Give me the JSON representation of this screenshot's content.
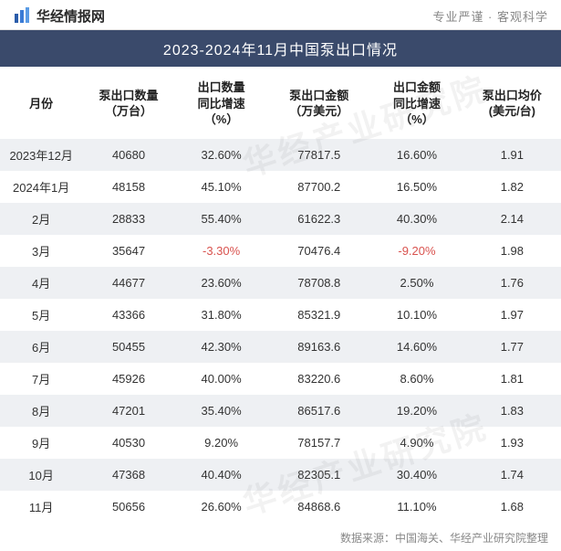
{
  "header": {
    "brand": "华经情报网",
    "tagline": "专业严谨 · 客观科学",
    "logo_colors": {
      "bar1": "#2a5caa",
      "bar2": "#3a7bd5",
      "bar3": "#5a9be5"
    }
  },
  "title": "2023-2024年11月中国泵出口情况",
  "title_bar_bg": "#3a4a6b",
  "title_bar_fg": "#ffffff",
  "watermark_text": "华经产业研究院",
  "table": {
    "type": "table",
    "row_bg_odd": "#eef0f3",
    "row_bg_even": "#ffffff",
    "negative_color": "#d9534f",
    "header_fontsize": 13,
    "cell_fontsize": 13,
    "columns": [
      {
        "key": "month",
        "label": "月份",
        "width": 80
      },
      {
        "key": "qty",
        "label": "泵出口数量\n（万台）",
        "width": 90
      },
      {
        "key": "qty_yoy",
        "label": "出口数量\n同比增速\n（%）",
        "width": 90
      },
      {
        "key": "value",
        "label": "泵出口金额\n（万美元）",
        "width": 100
      },
      {
        "key": "value_yoy",
        "label": "出口金额\n同比增速\n（%）",
        "width": 90
      },
      {
        "key": "unit_price",
        "label": "泵出口均价\n(美元/台)",
        "width": 95
      }
    ],
    "rows": [
      {
        "month": "2023年12月",
        "qty": "40680",
        "qty_yoy": "32.60%",
        "qty_yoy_neg": false,
        "value": "77817.5",
        "value_yoy": "16.60%",
        "value_yoy_neg": false,
        "unit_price": "1.91"
      },
      {
        "month": "2024年1月",
        "qty": "48158",
        "qty_yoy": "45.10%",
        "qty_yoy_neg": false,
        "value": "87700.2",
        "value_yoy": "16.50%",
        "value_yoy_neg": false,
        "unit_price": "1.82"
      },
      {
        "month": "2月",
        "qty": "28833",
        "qty_yoy": "55.40%",
        "qty_yoy_neg": false,
        "value": "61622.3",
        "value_yoy": "40.30%",
        "value_yoy_neg": false,
        "unit_price": "2.14"
      },
      {
        "month": "3月",
        "qty": "35647",
        "qty_yoy": "-3.30%",
        "qty_yoy_neg": true,
        "value": "70476.4",
        "value_yoy": "-9.20%",
        "value_yoy_neg": true,
        "unit_price": "1.98"
      },
      {
        "month": "4月",
        "qty": "44677",
        "qty_yoy": "23.60%",
        "qty_yoy_neg": false,
        "value": "78708.8",
        "value_yoy": "2.50%",
        "value_yoy_neg": false,
        "unit_price": "1.76"
      },
      {
        "month": "5月",
        "qty": "43366",
        "qty_yoy": "31.80%",
        "qty_yoy_neg": false,
        "value": "85321.9",
        "value_yoy": "10.10%",
        "value_yoy_neg": false,
        "unit_price": "1.97"
      },
      {
        "month": "6月",
        "qty": "50455",
        "qty_yoy": "42.30%",
        "qty_yoy_neg": false,
        "value": "89163.6",
        "value_yoy": "14.60%",
        "value_yoy_neg": false,
        "unit_price": "1.77"
      },
      {
        "month": "7月",
        "qty": "45926",
        "qty_yoy": "40.00%",
        "qty_yoy_neg": false,
        "value": "83220.6",
        "value_yoy": "8.60%",
        "value_yoy_neg": false,
        "unit_price": "1.81"
      },
      {
        "month": "8月",
        "qty": "47201",
        "qty_yoy": "35.40%",
        "qty_yoy_neg": false,
        "value": "86517.6",
        "value_yoy": "19.20%",
        "value_yoy_neg": false,
        "unit_price": "1.83"
      },
      {
        "month": "9月",
        "qty": "40530",
        "qty_yoy": "9.20%",
        "qty_yoy_neg": false,
        "value": "78157.7",
        "value_yoy": "4.90%",
        "value_yoy_neg": false,
        "unit_price": "1.93"
      },
      {
        "month": "10月",
        "qty": "47368",
        "qty_yoy": "40.40%",
        "qty_yoy_neg": false,
        "value": "82305.1",
        "value_yoy": "30.40%",
        "value_yoy_neg": false,
        "unit_price": "1.74"
      },
      {
        "month": "11月",
        "qty": "50656",
        "qty_yoy": "26.60%",
        "qty_yoy_neg": false,
        "value": "84868.6",
        "value_yoy": "11.10%",
        "value_yoy_neg": false,
        "unit_price": "1.68"
      }
    ]
  },
  "source": "数据来源：中国海关、华经产业研究院整理"
}
